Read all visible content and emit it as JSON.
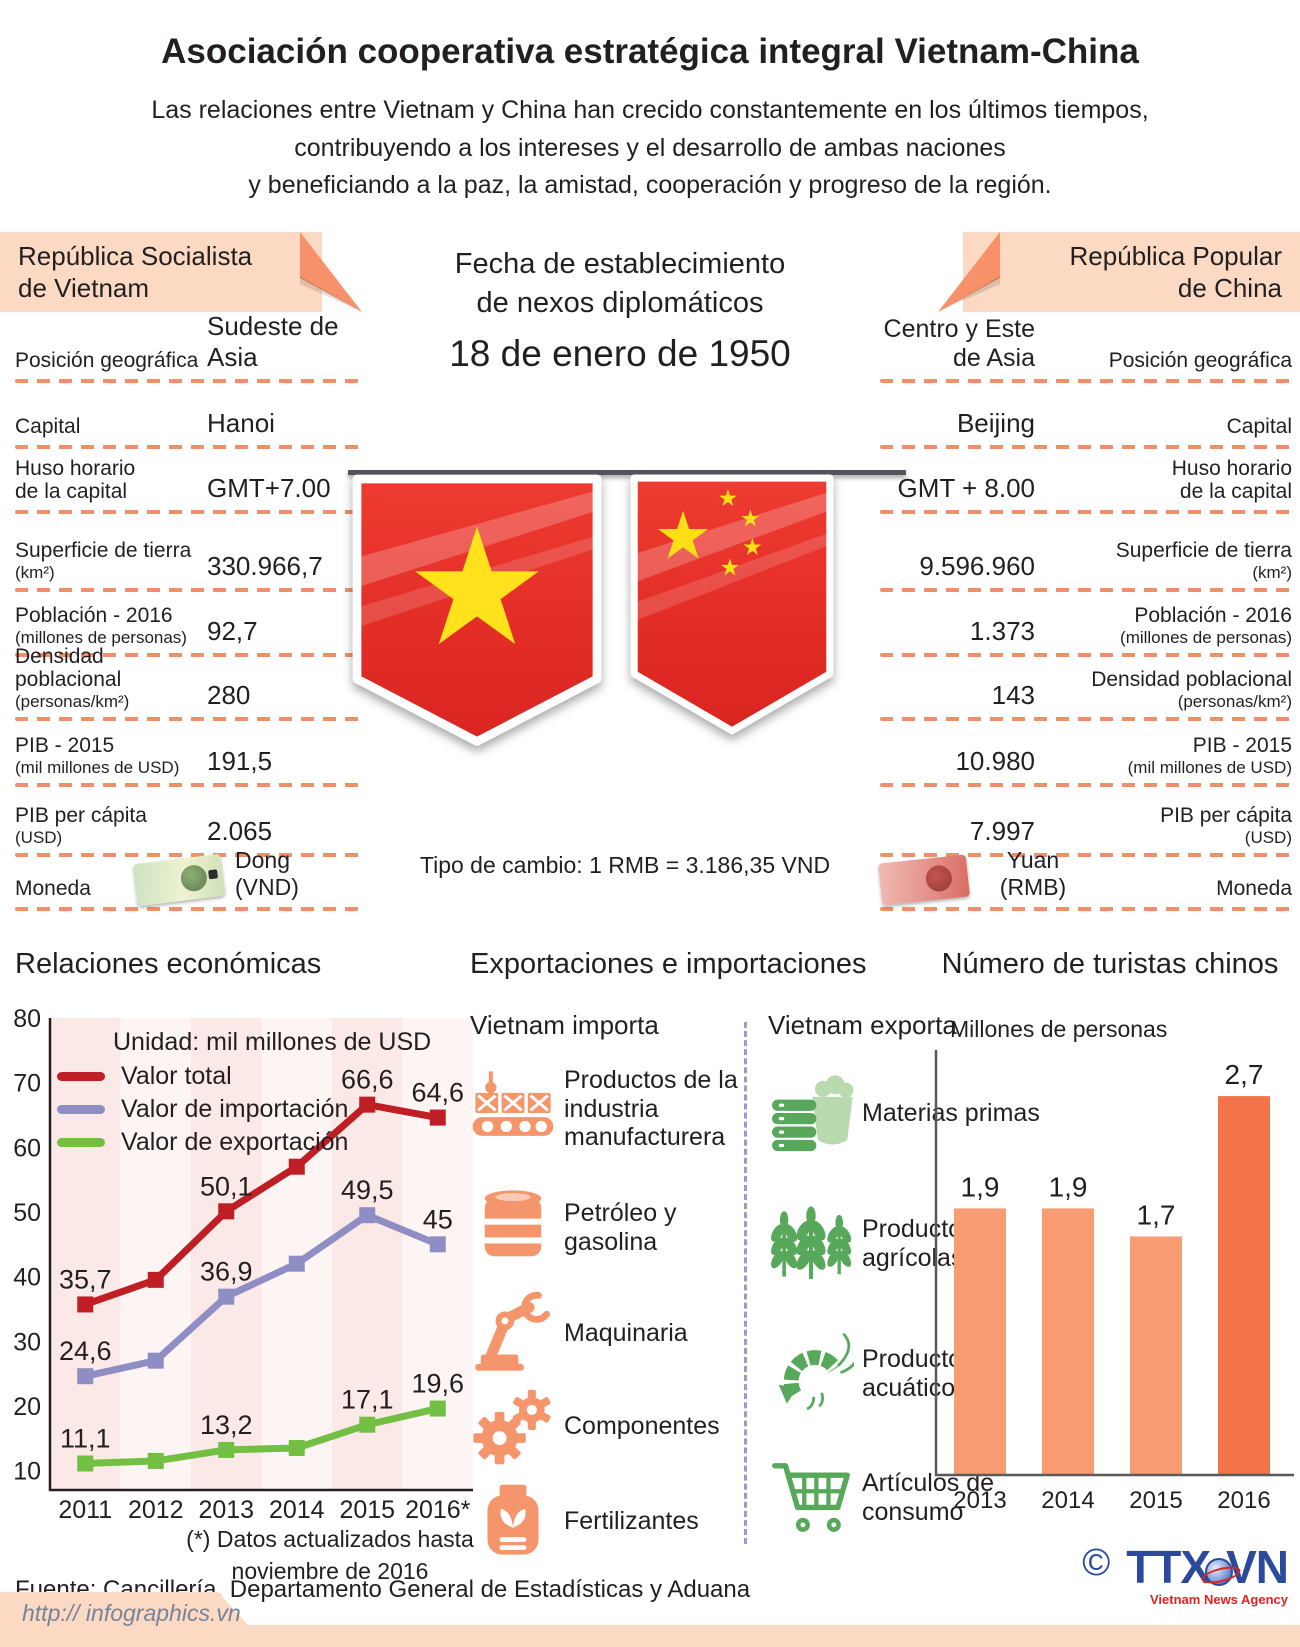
{
  "header": {
    "title": "Asociación cooperativa estratégica integral Vietnam-China",
    "subtitle": "Las relaciones entre Vietnam y China han crecido constantemente en los últimos tiempos,\ncontribuyendo a los intereses y el desarrollo de ambas naciones\ny beneficiando a la paz, la amistad, cooperación y progreso de la región."
  },
  "center": {
    "heading": "Fecha de establecimiento\nde nexos diplomáticos",
    "date": "18 de enero de 1950",
    "exchange": "Tipo de cambio: 1 RMB = 3.186,35 VND"
  },
  "vietnam": {
    "banner": "República Socialista\nde Vietnam",
    "rows": [
      {
        "label": "Posición geográfica",
        "value": "Sudeste de Asia"
      },
      {
        "label": "Capital",
        "value": "Hanoi"
      },
      {
        "label": "Huso horario\nde la capital",
        "value": "GMT+7.00"
      },
      {
        "label": "Superficie de tierra",
        "sub": "(km²)",
        "value": "330.966,7"
      },
      {
        "label": "Población - 2016",
        "sub": "(millones de personas)",
        "value": "92,7"
      },
      {
        "label": "Densidad poblacional",
        "sub": "(personas/km²)",
        "value": "280"
      },
      {
        "label": "PIB - 2015",
        "sub": "(mil millones de USD)",
        "value": "191,5"
      },
      {
        "label": "PIB per cápita",
        "sub": "(USD)",
        "value": "2.065"
      },
      {
        "label": "Moneda",
        "value": "Dong\n(VND)"
      }
    ]
  },
  "china": {
    "banner": "República Popular\nde China",
    "rows": [
      {
        "value": "Centro y Este\nde Asia",
        "label": "Posición geográfica"
      },
      {
        "value": "Beijing",
        "label": "Capital"
      },
      {
        "value": "GMT + 8.00",
        "label": "Huso horario\nde la capital"
      },
      {
        "value": "9.596.960",
        "label": "Superficie de tierra",
        "sub": "(km²)"
      },
      {
        "value": "1.373",
        "label": "Población - 2016",
        "sub": "(millones de personas)"
      },
      {
        "value": "143",
        "label": "Densidad poblacional",
        "sub": "(personas/km²)"
      },
      {
        "value": "10.980",
        "label": "PIB - 2015",
        "sub": "(mil millones de USD)"
      },
      {
        "value": "7.997",
        "label": "PIB per cápita",
        "sub": "(USD)"
      },
      {
        "value": "Yuan\n(RMB)",
        "label": "Moneda"
      }
    ]
  },
  "trade": {
    "title": "Exportaciones e importaciones",
    "imports": {
      "heading": "Vietnam importa",
      "items": [
        {
          "icon": "conveyor-icon",
          "label": "Productos de la industria manufacturera"
        },
        {
          "icon": "oil-barrel-icon",
          "label": "Petróleo y gasolina"
        },
        {
          "icon": "robot-arm-icon",
          "label": "Maquinaria"
        },
        {
          "icon": "gears-icon",
          "label": "Componentes"
        },
        {
          "icon": "fertilizer-bag-icon",
          "label": "Fertilizantes"
        }
      ]
    },
    "exports": {
      "heading": "Vietnam exporta",
      "items": [
        {
          "icon": "raw-materials-icon",
          "label": "Materias primas"
        },
        {
          "icon": "wheat-icon",
          "label": "Productos agrícolas"
        },
        {
          "icon": "shrimp-icon",
          "label": "Productos acuáticos"
        },
        {
          "icon": "shopping-cart-icon",
          "label": "Artículos de consumo"
        }
      ]
    }
  },
  "chart_data": [
    {
      "type": "line",
      "title": "Relaciones económicas",
      "unit_note": "Unidad: mil millones de USD",
      "categories": [
        "2011",
        "2012",
        "2013",
        "2014",
        "2015",
        "2016*"
      ],
      "series": [
        {
          "name": "Valor total",
          "color": "#be1e24",
          "values": [
            35.7,
            39.5,
            50.1,
            57.0,
            66.6,
            64.6
          ],
          "labels": [
            "35,7",
            "",
            "50,1",
            "",
            "66,6",
            "64,6"
          ]
        },
        {
          "name": "Valor de importación",
          "color": "#8e8ec5",
          "values": [
            24.6,
            27.0,
            36.9,
            42.0,
            49.5,
            45.0
          ],
          "labels": [
            "24,6",
            "",
            "36,9",
            "",
            "49,5",
            "45"
          ]
        },
        {
          "name": "Valor de exportación",
          "color": "#72bf44",
          "values": [
            11.1,
            11.5,
            13.2,
            13.5,
            17.1,
            19.6
          ],
          "labels": [
            "11,1",
            "",
            "13,2",
            "",
            "17,1",
            "19,6"
          ]
        }
      ],
      "yticks": [
        10,
        20,
        30,
        40,
        50,
        60,
        70,
        80
      ],
      "ylim": [
        7,
        80
      ],
      "stripe_colors": [
        "#fbe9e7",
        "#fdf5f3"
      ],
      "footnote": "(*) Datos actualizados hasta\nnoviembre de 2016"
    },
    {
      "type": "bar",
      "title": "Número de turistas chinos",
      "ylabel": "Millones de personas",
      "categories": [
        "2013",
        "2014",
        "2015",
        "2016"
      ],
      "values": [
        1.9,
        1.9,
        1.7,
        2.7
      ],
      "labels": [
        "1,9",
        "1,9",
        "1,7",
        "2,7"
      ],
      "bar_colors": [
        "#f89d73",
        "#f89d73",
        "#f89d73",
        "#f3734b"
      ],
      "ylim": [
        0,
        3
      ]
    }
  ],
  "footer": {
    "source": "Fuente: Cancillería, Departamento General de Estadísticas y Aduana",
    "url": "http:// infographics.vn",
    "copyright": "©",
    "agency": {
      "t1": "TTX",
      "t2": "VN"
    },
    "agency_sub": "Vietnam News Agency"
  },
  "colors": {
    "accent_peach": "#fbd9c2",
    "accent_orange": "#f6916a",
    "dash": "#f0906a",
    "flag_red": "#e32726",
    "star_yellow": "#ffe11c",
    "import_icon": "#f5956c",
    "export_icon": "#5fae54",
    "divider": "#9a9ad0",
    "logo_blue": "#2b4a9c",
    "logo_red": "#e42320"
  }
}
